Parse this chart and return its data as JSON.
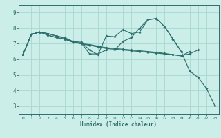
{
  "title": "",
  "xlabel": "Humidex (Indice chaleur)",
  "ylabel": "",
  "bg_color": "#cceee8",
  "line_color": "#2d6e6e",
  "grid_color": "#a8d8d0",
  "xlim": [
    -0.5,
    23.5
  ],
  "ylim": [
    2.5,
    9.5
  ],
  "xticks": [
    0,
    1,
    2,
    3,
    4,
    5,
    6,
    7,
    8,
    9,
    10,
    11,
    12,
    13,
    14,
    15,
    16,
    17,
    18,
    19,
    20,
    21,
    22,
    23
  ],
  "yticks": [
    3,
    4,
    5,
    6,
    7,
    8,
    9
  ],
  "series": [
    {
      "x": [
        0,
        1,
        2,
        3,
        4,
        5,
        6,
        7,
        8,
        9,
        10,
        11,
        12,
        13,
        14,
        15,
        16,
        17,
        18,
        19
      ],
      "y": [
        6.3,
        7.6,
        7.75,
        7.65,
        7.5,
        7.4,
        7.15,
        7.1,
        6.6,
        6.3,
        7.5,
        7.45,
        7.9,
        7.65,
        7.75,
        8.55,
        8.62,
        8.1,
        7.3,
        6.5
      ]
    },
    {
      "x": [
        0,
        1,
        2,
        3,
        4,
        5,
        6,
        7,
        8,
        9,
        10,
        11,
        12,
        13,
        14,
        15,
        16,
        17,
        18,
        19,
        20,
        21,
        22,
        23
      ],
      "y": [
        6.3,
        7.6,
        7.75,
        7.65,
        7.5,
        7.35,
        7.1,
        7.05,
        6.35,
        6.35,
        6.6,
        6.6,
        7.15,
        7.4,
        8.0,
        8.55,
        8.62,
        8.1,
        7.3,
        6.5,
        5.25,
        4.85,
        4.15,
        3.05
      ]
    },
    {
      "x": [
        0,
        1,
        2,
        3,
        4,
        5,
        6,
        7,
        8,
        9,
        10,
        11,
        12,
        13,
        14,
        15,
        16,
        17,
        18,
        19,
        20
      ],
      "y": [
        6.3,
        7.6,
        7.75,
        7.55,
        7.4,
        7.3,
        7.1,
        7.0,
        6.95,
        6.85,
        6.75,
        6.7,
        6.65,
        6.6,
        6.55,
        6.5,
        6.45,
        6.38,
        6.3,
        6.22,
        6.5
      ]
    },
    {
      "x": [
        0,
        1,
        2,
        3,
        4,
        5,
        6,
        7,
        8,
        9,
        10,
        11,
        12,
        13,
        14,
        15,
        16,
        17,
        18,
        19,
        20,
        21
      ],
      "y": [
        6.3,
        7.6,
        7.75,
        7.55,
        7.4,
        7.3,
        7.1,
        7.0,
        6.9,
        6.8,
        6.7,
        6.65,
        6.6,
        6.55,
        6.5,
        6.45,
        6.4,
        6.35,
        6.3,
        6.25,
        6.35,
        6.6
      ]
    }
  ]
}
